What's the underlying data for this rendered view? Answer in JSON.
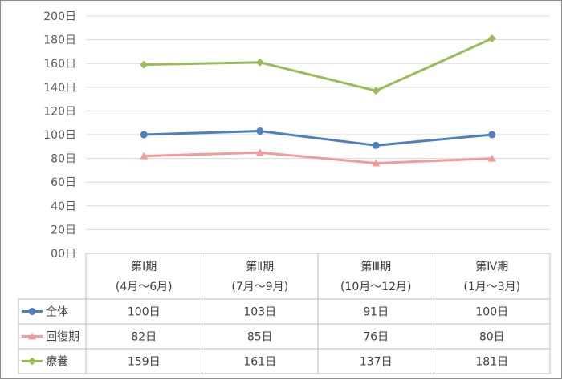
{
  "chart_data": {
    "type": "line",
    "categories": [
      {
        "line1": "第Ⅰ期",
        "line2": "(4月～6月)"
      },
      {
        "line1": "第Ⅱ期",
        "line2": "(7月～9月)"
      },
      {
        "line1": "第Ⅲ期",
        "line2": "(10月～12月)"
      },
      {
        "line1": "第Ⅳ期",
        "line2": "(1月～3月)"
      }
    ],
    "y_ticks": [
      "00日",
      "20日",
      "40日",
      "60日",
      "80日",
      "100日",
      "120日",
      "140日",
      "160日",
      "180日",
      "200日"
    ],
    "ylim": [
      0,
      200
    ],
    "grid": true,
    "legend": "data-table",
    "series": [
      {
        "name": "全体",
        "values": [
          100,
          103,
          91,
          100
        ],
        "labels": [
          "100日",
          "103日",
          "91日",
          "100日"
        ],
        "color": "#4f7fbf",
        "marker": "circle"
      },
      {
        "name": "回復期",
        "values": [
          82,
          85,
          76,
          80
        ],
        "labels": [
          "82日",
          "85日",
          "76日",
          "80日"
        ],
        "color": "#f49a9a",
        "marker": "triangle"
      },
      {
        "name": "療養",
        "values": [
          159,
          161,
          137,
          181
        ],
        "labels": [
          "159日",
          "161日",
          "137日",
          "181日"
        ],
        "color": "#9bbb59",
        "marker": "diamond"
      }
    ]
  }
}
